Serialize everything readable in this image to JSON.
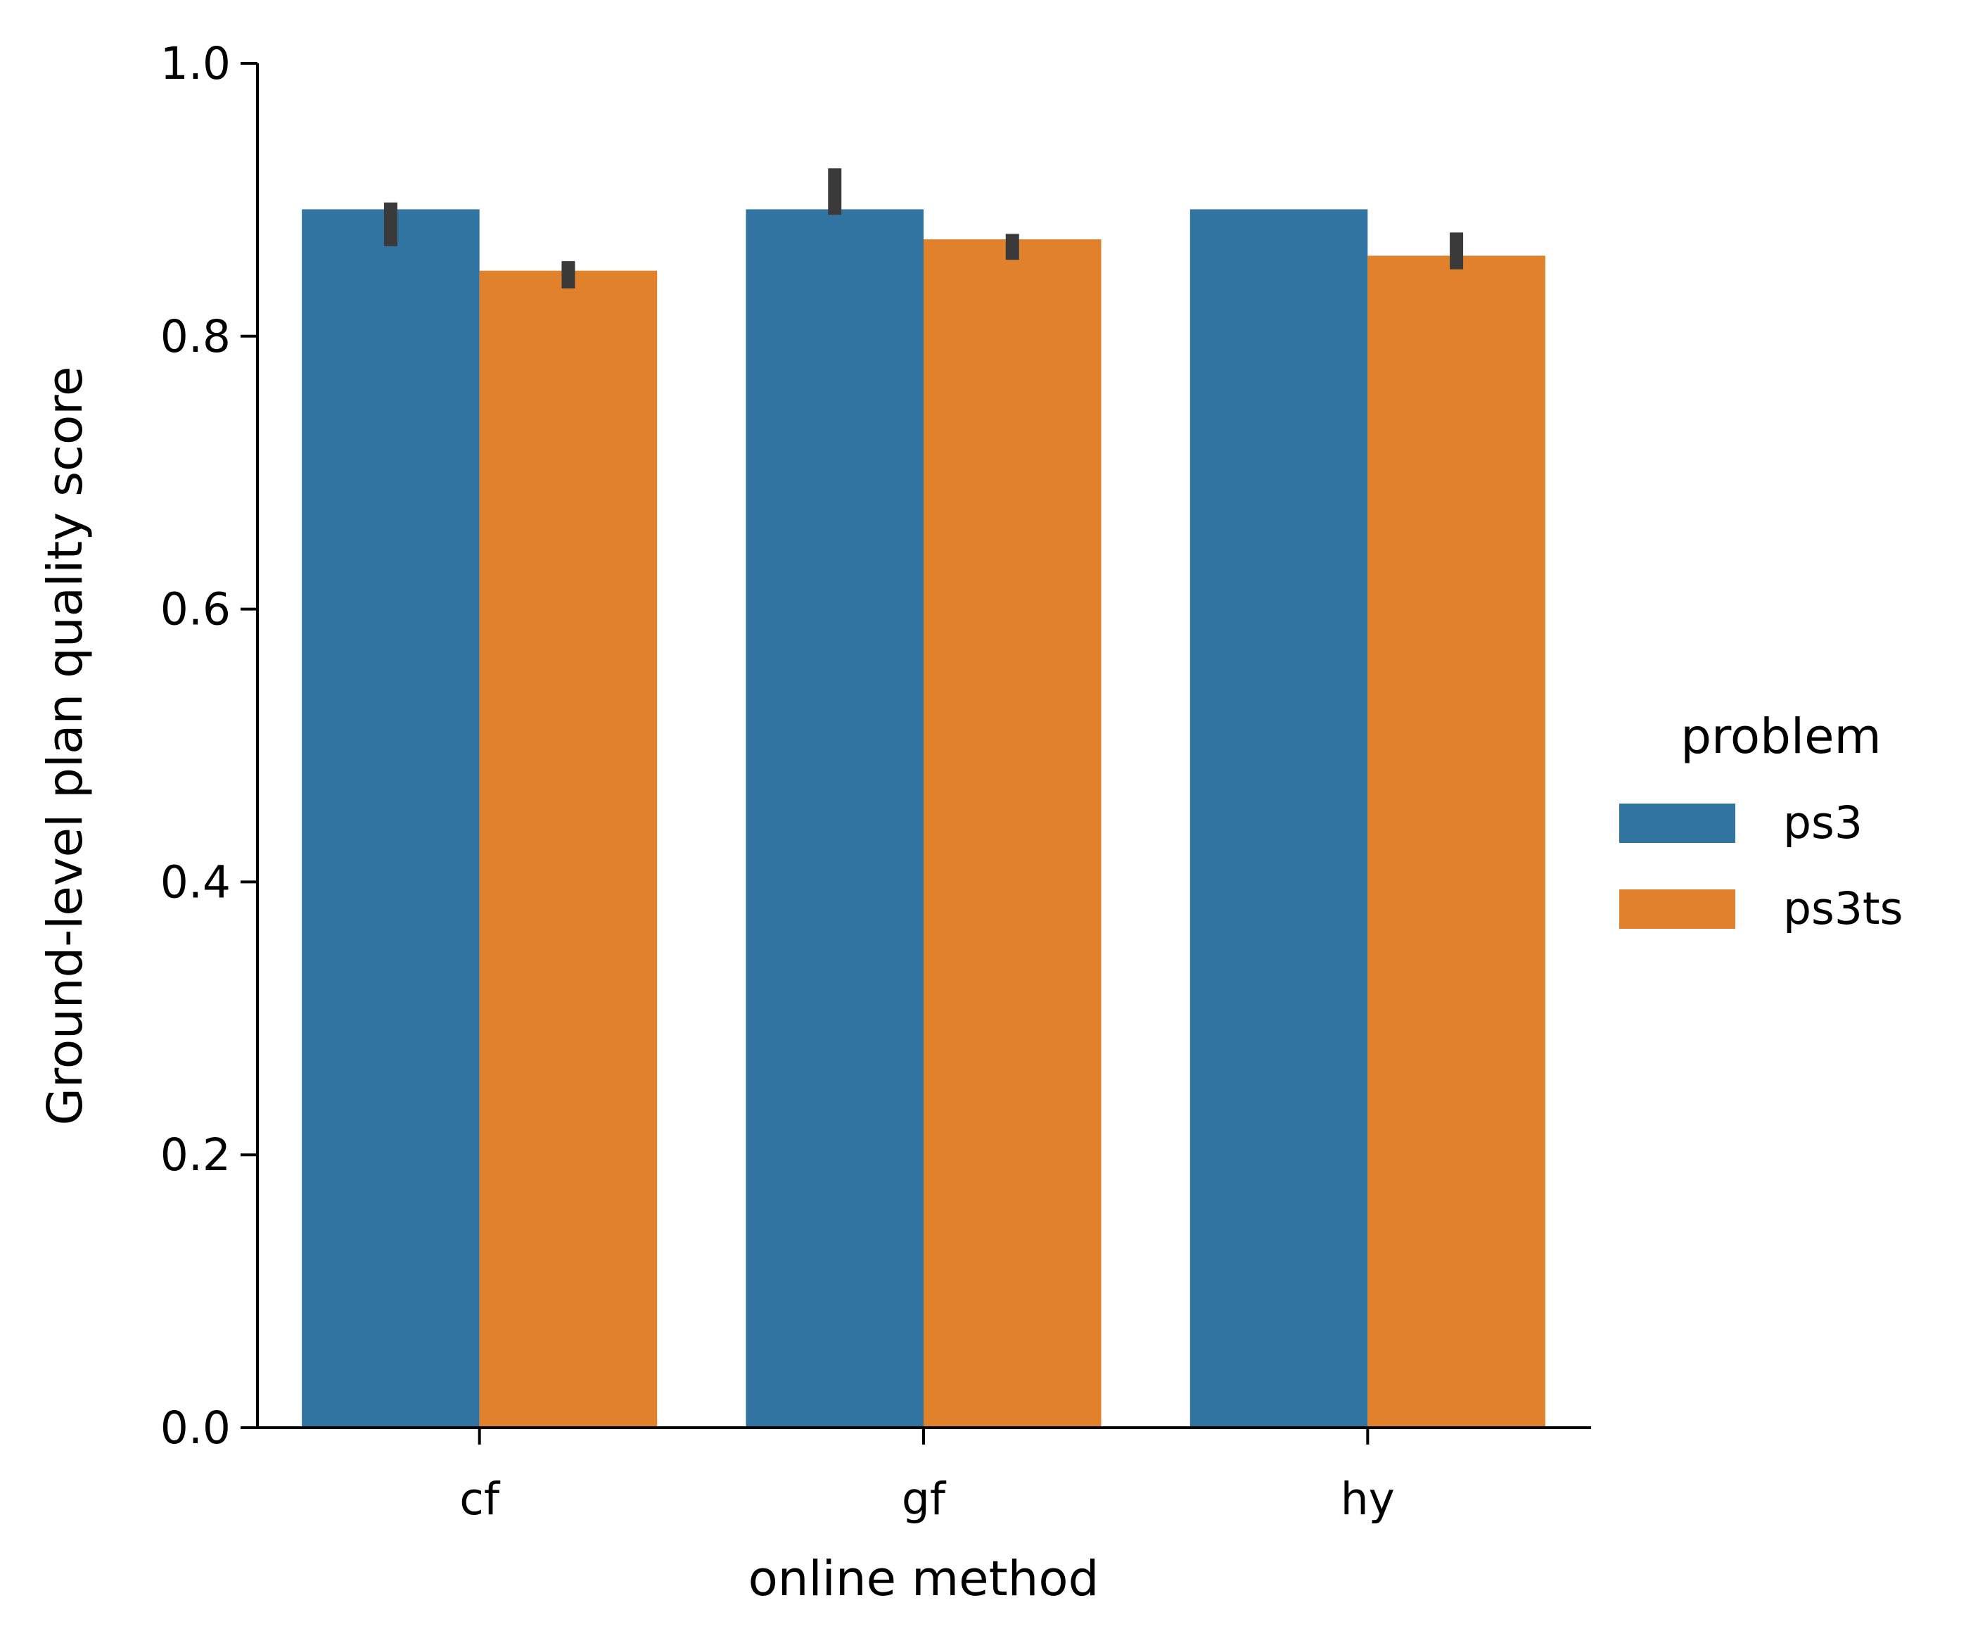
{
  "chart_data": {
    "type": "bar",
    "xlabel": "online method",
    "ylabel": "Ground-level plan quality score",
    "categories": [
      "cf",
      "gf",
      "hy"
    ],
    "ylim": [
      0,
      1.0
    ],
    "yticks": [
      0.0,
      0.2,
      0.4,
      0.6,
      0.8,
      1.0
    ],
    "ytick_labels": [
      "0.0",
      "0.2",
      "0.4",
      "0.6",
      "0.8",
      "1.0"
    ],
    "grid": false,
    "legend": {
      "title": "problem",
      "placement": "right",
      "entries": [
        "ps3",
        "ps3ts"
      ]
    },
    "series": [
      {
        "name": "ps3",
        "color": "#3274a1",
        "values": [
          0.893,
          0.893,
          0.893
        ],
        "error_low": [
          0.866,
          0.889,
          0.893
        ],
        "error_high": [
          0.898,
          0.923,
          0.893
        ]
      },
      {
        "name": "ps3ts",
        "color": "#e1812c",
        "values": [
          0.848,
          0.871,
          0.859
        ],
        "error_low": [
          0.835,
          0.856,
          0.849
        ],
        "error_high": [
          0.855,
          0.875,
          0.876
        ]
      }
    ],
    "error_bar_color": "#3a3a3a"
  }
}
